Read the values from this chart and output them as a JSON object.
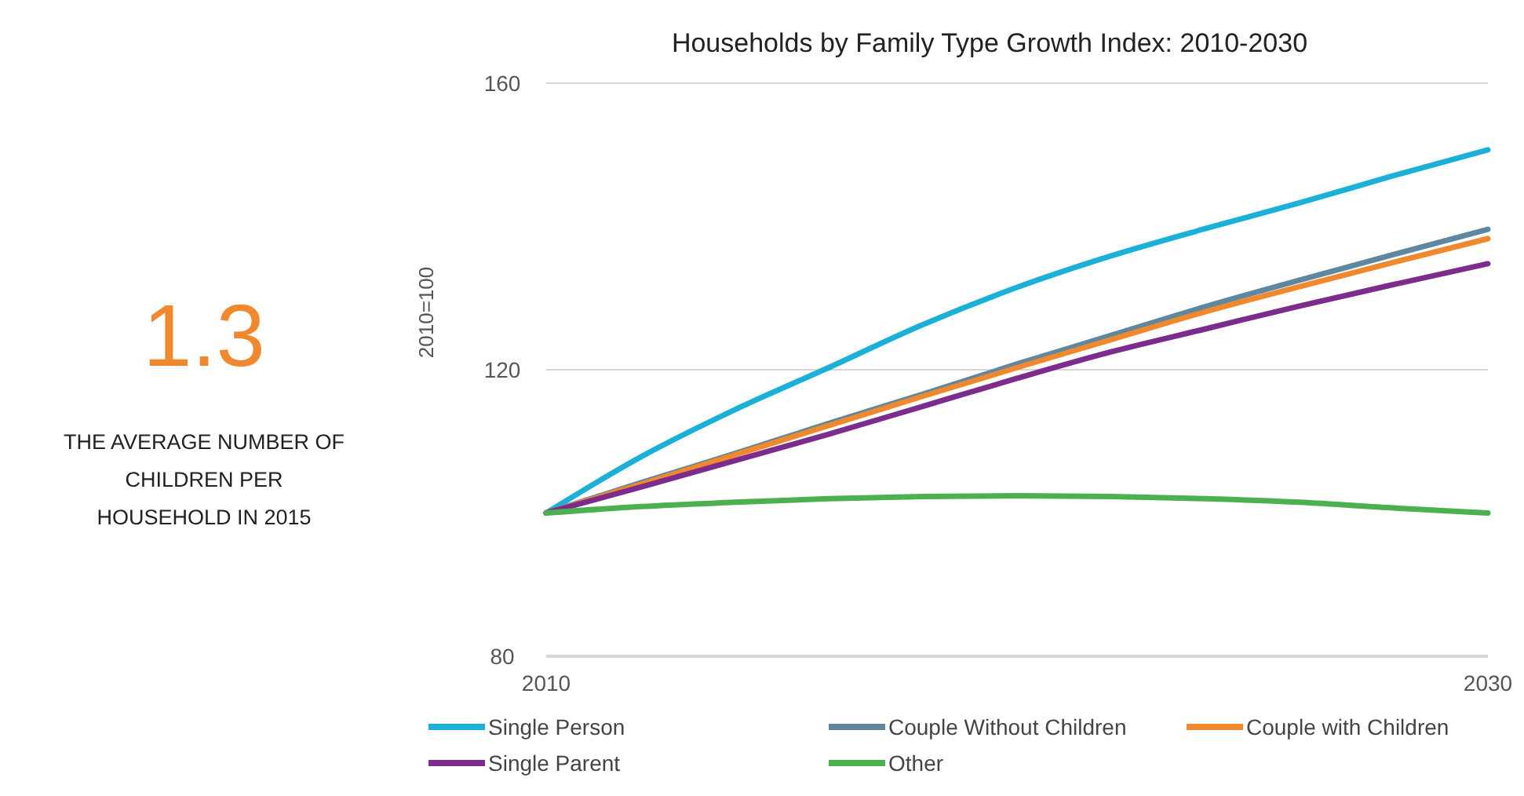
{
  "chart_data": {
    "type": "line",
    "title": "Households by Family Type Growth Index: 2010-2030",
    "ylabel": "2010=100",
    "x": [
      2010,
      2012,
      2014,
      2016,
      2018,
      2020,
      2022,
      2024,
      2026,
      2028,
      2030
    ],
    "xlim": [
      2010,
      2030
    ],
    "xticks": [
      2010,
      2030
    ],
    "ylim": [
      80,
      160
    ],
    "yticks": [
      80,
      120,
      160
    ],
    "grid": "y",
    "legend": "bottom",
    "marker": "none",
    "line_style": "solid",
    "series": [
      {
        "name": "Single Person",
        "color": "#1ab0d8",
        "values": [
          100,
          107.8,
          114.4,
          120.3,
          126.3,
          131.5,
          135.9,
          139.7,
          143.3,
          147.1,
          150.7
        ]
      },
      {
        "name": "Couple Without Children",
        "color": "#5f87a0",
        "values": [
          100,
          104.2,
          108.3,
          112.5,
          116.6,
          120.8,
          124.8,
          128.8,
          132.5,
          136.1,
          139.6
        ]
      },
      {
        "name": "Couple with Children",
        "color": "#f0882e",
        "values": [
          100,
          104,
          108.1,
          112.2,
          116.3,
          120.3,
          124.2,
          128.1,
          131.6,
          135,
          138.3
        ]
      },
      {
        "name": "Single Parent",
        "color": "#7b2c8c",
        "values": [
          100,
          103.6,
          107.3,
          111,
          114.9,
          118.8,
          122.5,
          125.7,
          128.9,
          131.9,
          134.8
        ]
      },
      {
        "name": "Other",
        "color": "#4caf50",
        "values": [
          100,
          100.9,
          101.5,
          102,
          102.3,
          102.4,
          102.3,
          102,
          101.5,
          100.7,
          100
        ]
      }
    ],
    "annotations": [
      "1.3",
      "THE AVERAGE NUMBER OF CHILDREN PER HOUSEHOLD IN 2015"
    ]
  }
}
